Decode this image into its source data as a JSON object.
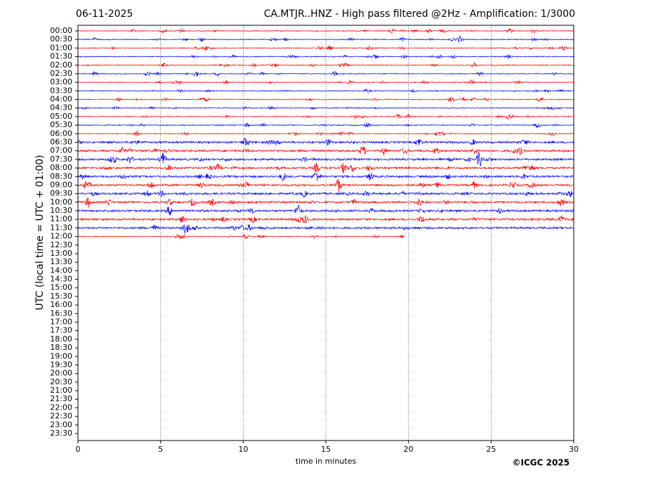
{
  "chart_data": {
    "type": "helicorder",
    "date": "06-11-2025",
    "title": "CA.MTJR..HNZ - High pass filtered @2Hz - Amplification: 1/3000",
    "ylabel": "UTC (local time = UTC + 01:00)",
    "xlabel": "time in minutes",
    "copyright": "©ICGC 2025",
    "xlim": [
      0,
      30
    ],
    "xticks": [
      0,
      5,
      10,
      15,
      20,
      25,
      30
    ],
    "rows": [
      "00:00",
      "00:30",
      "01:00",
      "01:30",
      "02:00",
      "02:30",
      "03:00",
      "03:30",
      "04:00",
      "04:30",
      "05:00",
      "05:30",
      "06:00",
      "06:30",
      "07:00",
      "07:30",
      "08:00",
      "08:30",
      "09:00",
      "09:30",
      "10:00",
      "10:30",
      "11:00",
      "11:30",
      "12:00",
      "12:30",
      "13:00",
      "13:30",
      "14:00",
      "14:30",
      "15:00",
      "15:30",
      "16:00",
      "16:30",
      "17:00",
      "17:30",
      "18:00",
      "18:30",
      "19:00",
      "19:30",
      "20:00",
      "20:30",
      "21:00",
      "21:30",
      "22:00",
      "22:30",
      "23:00",
      "23:30"
    ],
    "recorded_minutes": [
      30,
      30,
      30,
      30,
      30,
      30,
      30,
      30,
      30,
      30,
      30,
      30,
      30,
      30,
      30,
      30,
      30,
      30,
      30,
      30,
      30,
      30,
      30,
      30,
      19.8
    ],
    "colors": [
      "#ff0000",
      "#0000ff"
    ],
    "grid": true
  }
}
